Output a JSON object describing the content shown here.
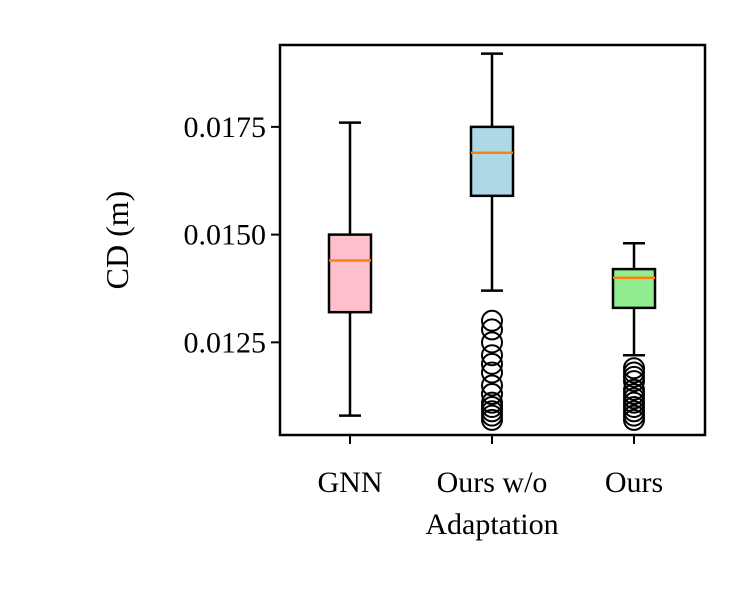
{
  "chart_data": {
    "type": "box",
    "title": "",
    "xlabel": "",
    "ylabel": "CD (m)",
    "ylim": [
      0.01035,
      0.0194
    ],
    "yticks": [
      {
        "value": 0.0125,
        "label": "0.0125"
      },
      {
        "value": 0.015,
        "label": "0.0150"
      },
      {
        "value": 0.0175,
        "label": "0.0175"
      }
    ],
    "categories": [
      {
        "label_lines": [
          "GNN"
        ]
      },
      {
        "label_lines": [
          "Ours w/o",
          "Adaptation"
        ]
      },
      {
        "label_lines": [
          "Ours"
        ]
      }
    ],
    "boxes": [
      {
        "whisker_low": 0.0108,
        "q1": 0.0132,
        "median": 0.0144,
        "q3": 0.015,
        "whisker_high": 0.0176,
        "color": "#ffc0cb",
        "outliers": []
      },
      {
        "whisker_low": 0.0137,
        "q1": 0.0159,
        "median": 0.0169,
        "q3": 0.0175,
        "whisker_high": 0.0192,
        "color": "#add8e6",
        "outliers": [
          0.013,
          0.0128,
          0.0125,
          0.0122,
          0.012,
          0.0118,
          0.0115,
          0.0113,
          0.0111,
          0.011,
          0.0109,
          0.0108,
          0.0107
        ]
      },
      {
        "whisker_low": 0.0122,
        "q1": 0.0133,
        "median": 0.014,
        "q3": 0.0142,
        "whisker_high": 0.0148,
        "color": "#90ee90",
        "outliers": [
          0.0119,
          0.0118,
          0.0117,
          0.0116,
          0.0114,
          0.0113,
          0.0112,
          0.0111,
          0.011,
          0.0109,
          0.0108,
          0.0107
        ]
      }
    ],
    "median_color": "#ff7f0e",
    "grid": false,
    "legend": "none"
  }
}
